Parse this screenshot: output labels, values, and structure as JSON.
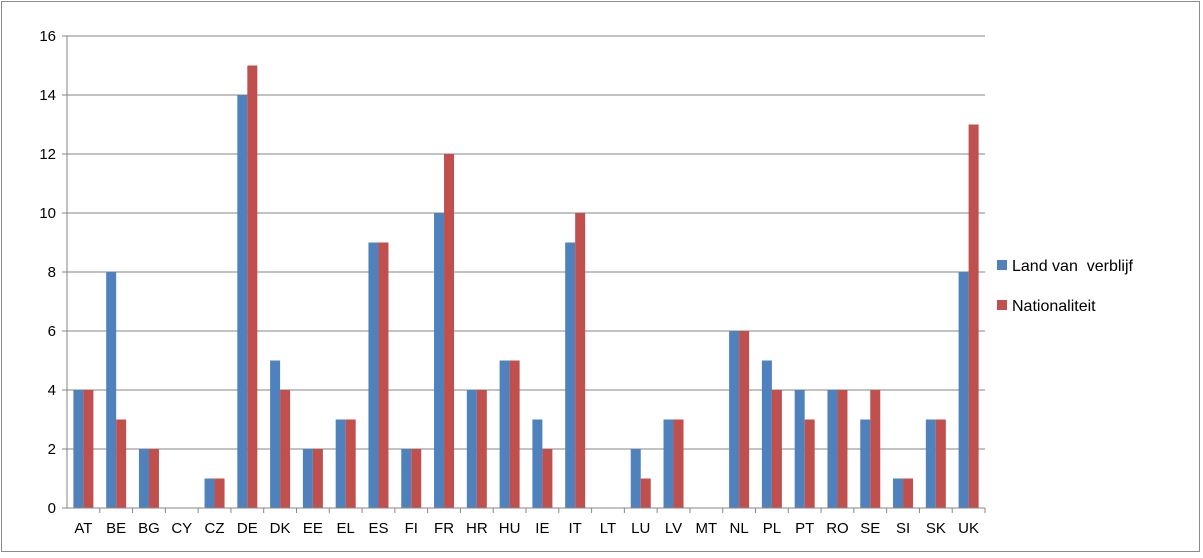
{
  "chart_data": {
    "type": "bar",
    "categories": [
      "AT",
      "BE",
      "BG",
      "CY",
      "CZ",
      "DE",
      "DK",
      "EE",
      "EL",
      "ES",
      "FI",
      "FR",
      "HR",
      "HU",
      "IE",
      "IT",
      "LT",
      "LU",
      "LV",
      "MT",
      "NL",
      "PL",
      "PT",
      "RO",
      "SE",
      "SI",
      "SK",
      "UK"
    ],
    "series": [
      {
        "name": "Land van  verblijf",
        "color": "#4f81bd",
        "values": [
          4,
          8,
          2,
          0,
          1,
          14,
          5,
          2,
          3,
          9,
          2,
          10,
          4,
          5,
          3,
          9,
          0,
          2,
          3,
          0,
          6,
          5,
          4,
          4,
          3,
          1,
          3,
          8
        ]
      },
      {
        "name": "Nationaliteit",
        "color": "#c0504d",
        "values": [
          4,
          3,
          2,
          0,
          1,
          15,
          4,
          2,
          3,
          9,
          2,
          12,
          4,
          5,
          2,
          10,
          0,
          1,
          3,
          0,
          6,
          4,
          3,
          4,
          4,
          1,
          3,
          13
        ]
      }
    ],
    "ylim": [
      0,
      16
    ],
    "yticks": [
      0,
      2,
      4,
      6,
      8,
      10,
      12,
      14,
      16
    ],
    "grid": true,
    "legend_position": "right",
    "title": "",
    "xlabel": "",
    "ylabel": ""
  }
}
